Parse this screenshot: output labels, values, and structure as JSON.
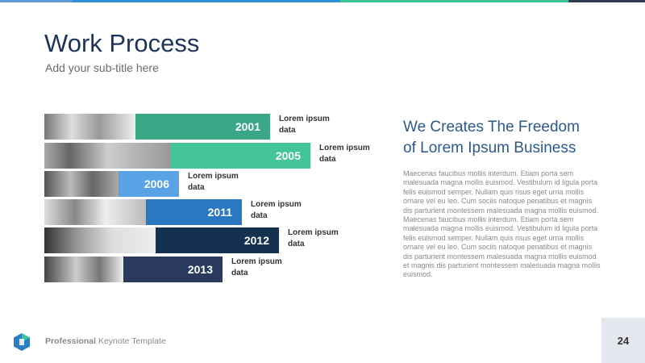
{
  "header": {
    "title": "Work Process",
    "subtitle": "Add your sub-title here"
  },
  "rows": [
    {
      "year": "2001",
      "label": "Lorem ipsum data"
    },
    {
      "year": "2005",
      "label": "Lorem ipsum data"
    },
    {
      "year": "2006",
      "label": "Lorem ipsum data"
    },
    {
      "year": "2011",
      "label": "Lorem ipsum data"
    },
    {
      "year": "2012",
      "label": "Lorem ipsum data"
    },
    {
      "year": "2013",
      "label": "Lorem ipsum data"
    }
  ],
  "content": {
    "heading_lines": [
      "We Creates The Freedom",
      "of Lorem Ipsum Business"
    ],
    "body": "Maecenas faucibus mollis interdum. Etiam porta sem malesuada magna mollis euismod. Vestibulum id ligula porta felis euismod semper. Nullam quis risus eget urna mollis ornare vel eu leo. Cum sociis natoque penatibus et magnis dis parturient montessem malesuada magna mollis euismod. Maecenas faucibus mollis interdum. Etiam porta sem malesuada magna mollis euismod. Vestibulum id ligula porta felis euismod semper. Nullam quis risus eget urna mollis ornare vel eu leo. Cum sociis natoque penatibus et magnis dis parturient montessem malesuada magna mollis euismod et magnis dis parturient montessem malesuada magna mollis euismod."
  },
  "footer": {
    "brand_bold": "Professional",
    "brand_rest": "Keynote Template",
    "page_number": "24"
  }
}
